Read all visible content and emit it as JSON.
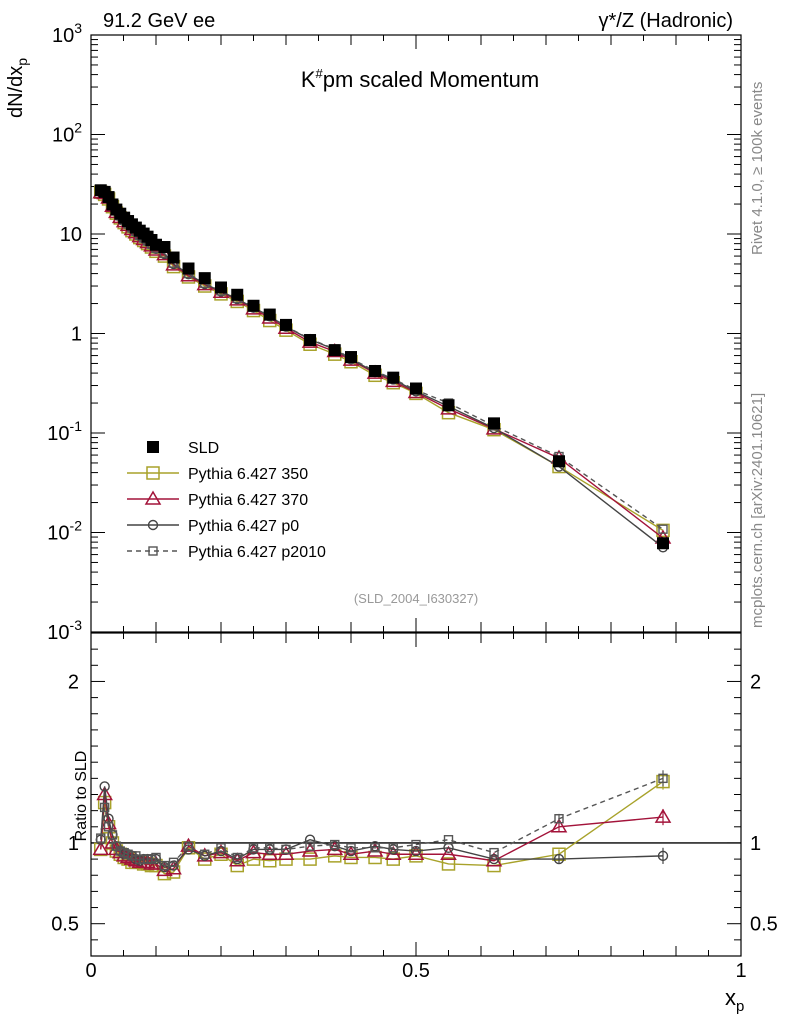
{
  "header": {
    "left": "91.2 GeV ee",
    "right": "γ*/Z (Hadronic)"
  },
  "side_labels": {
    "rivet": "Rivet 4.1.0, ≥ 100k events",
    "site": "mcplots.cern.ch [arXiv:2401.10621]"
  },
  "reference": "(SLD_2004_I630327)",
  "chart_data": [
    {
      "id": "main",
      "type": "scatter",
      "title": "K#pm scaled Momentum",
      "ylabel": "dN/dx_p",
      "xlabel": "",
      "yscale": "log",
      "xlim": [
        0,
        1
      ],
      "ylim": [
        0.001,
        1000
      ],
      "ytick_labels": [
        "10^-3",
        "10^-2",
        "10^-1",
        "1",
        "10",
        "10^2",
        "10^3"
      ],
      "x": [
        0.015,
        0.021,
        0.027,
        0.033,
        0.039,
        0.045,
        0.051,
        0.057,
        0.063,
        0.069,
        0.075,
        0.081,
        0.087,
        0.093,
        0.1,
        0.113,
        0.127,
        0.15,
        0.175,
        0.2,
        0.225,
        0.25,
        0.275,
        0.3,
        0.337,
        0.375,
        0.4,
        0.437,
        0.465,
        0.5,
        0.55,
        0.62,
        0.72,
        0.88
      ],
      "series": [
        {
          "name": "SLD",
          "marker": "filled-square",
          "color": "#000000",
          "values": [
            27.5,
            26.5,
            23.5,
            19.8,
            17.6,
            16.0,
            14.6,
            13.5,
            12.5,
            11.6,
            10.8,
            10.1,
            9.4,
            8.7,
            7.8,
            7.4,
            5.8,
            4.5,
            3.6,
            2.9,
            2.45,
            1.9,
            1.55,
            1.22,
            0.86,
            0.68,
            0.58,
            0.42,
            0.36,
            0.28,
            0.19,
            0.125,
            0.052,
            0.0078
          ]
        },
        {
          "name": "Pythia 6.427 350",
          "marker": "open-square",
          "color": "#a8a22a",
          "values": [
            26.3,
            25.0,
            22.5,
            18.8,
            16.2,
            14.5,
            13.0,
            11.8,
            10.8,
            10.0,
            9.2,
            8.6,
            8.0,
            7.4,
            6.7,
            6.0,
            4.7,
            3.7,
            3.0,
            2.5,
            2.1,
            1.7,
            1.35,
            1.08,
            0.78,
            0.62,
            0.52,
            0.38,
            0.32,
            0.25,
            0.16,
            0.108,
            0.046,
            0.0105
          ]
        },
        {
          "name": "Pythia 6.427 370",
          "marker": "open-triangle",
          "color": "#a3133a",
          "values": [
            26.0,
            25.5,
            23.0,
            19.0,
            16.5,
            14.7,
            13.3,
            12.2,
            11.1,
            10.3,
            9.4,
            8.8,
            8.2,
            7.6,
            6.9,
            6.2,
            4.9,
            3.8,
            3.1,
            2.6,
            2.18,
            1.77,
            1.43,
            1.13,
            0.82,
            0.66,
            0.54,
            0.4,
            0.33,
            0.255,
            0.175,
            0.11,
            0.056,
            0.0088
          ]
        },
        {
          "name": "Pythia 6.427 p0",
          "marker": "open-circle",
          "color": "#444444",
          "values": [
            27.0,
            26.0,
            23.8,
            19.9,
            17.0,
            15.0,
            13.6,
            12.5,
            11.4,
            10.5,
            9.6,
            9.0,
            8.4,
            7.8,
            7.1,
            6.3,
            5.0,
            3.95,
            3.15,
            2.65,
            2.22,
            1.82,
            1.49,
            1.17,
            0.87,
            0.69,
            0.55,
            0.41,
            0.345,
            0.262,
            0.185,
            0.112,
            0.046,
            0.0071
          ]
        },
        {
          "name": "Pythia 6.427 p2010",
          "marker": "open-square-small",
          "color": "#555555",
          "dashed": true,
          "values": [
            28.0,
            27.0,
            24.0,
            20.0,
            17.2,
            15.2,
            13.7,
            12.6,
            11.5,
            10.6,
            9.7,
            9.1,
            8.5,
            7.9,
            7.2,
            6.4,
            5.1,
            4.0,
            3.2,
            2.68,
            2.25,
            1.84,
            1.5,
            1.18,
            0.88,
            0.7,
            0.56,
            0.42,
            0.35,
            0.27,
            0.2,
            0.118,
            0.058,
            0.0108
          ]
        }
      ],
      "legend_position": "lower-left"
    },
    {
      "id": "ratio",
      "type": "scatter",
      "title": "",
      "ylabel": "Ratio to SLD",
      "xlabel": "x_p",
      "xlim": [
        0,
        1
      ],
      "ylim": [
        0.3,
        2.3
      ],
      "ytick_labels": [
        "0.5",
        "1",
        "2"
      ],
      "xtick_labels": [
        "0",
        "0.5",
        "1"
      ],
      "reference_line": 1,
      "series": [
        {
          "name": "Pythia 6.427 350",
          "color": "#a8a22a",
          "values": [
            0.96,
            1.25,
            1.1,
            1.0,
            0.95,
            0.93,
            0.91,
            0.9,
            0.88,
            0.88,
            0.88,
            0.87,
            0.87,
            0.86,
            0.86,
            0.81,
            0.82,
            0.97,
            0.9,
            0.93,
            0.86,
            0.9,
            0.89,
            0.9,
            0.9,
            0.92,
            0.91,
            0.91,
            0.9,
            0.92,
            0.87,
            0.86,
            0.93,
            1.38
          ]
        },
        {
          "name": "Pythia 6.427 370",
          "color": "#a3133a",
          "values": [
            0.96,
            1.3,
            1.12,
            1.0,
            0.96,
            0.94,
            0.92,
            0.91,
            0.9,
            0.89,
            0.88,
            0.88,
            0.88,
            0.87,
            0.87,
            0.83,
            0.84,
            0.98,
            0.92,
            0.94,
            0.89,
            0.94,
            0.93,
            0.93,
            0.95,
            0.96,
            0.93,
            0.95,
            0.93,
            0.93,
            0.93,
            0.89,
            1.1,
            1.16
          ]
        },
        {
          "name": "Pythia 6.427 p0",
          "color": "#444444",
          "values": [
            1.02,
            1.35,
            1.15,
            1.05,
            0.98,
            0.95,
            0.93,
            0.93,
            0.92,
            0.9,
            0.89,
            0.9,
            0.9,
            0.9,
            0.9,
            0.85,
            0.86,
            0.96,
            0.92,
            0.95,
            0.9,
            0.96,
            0.96,
            0.96,
            1.02,
            0.98,
            0.95,
            0.98,
            0.96,
            0.95,
            0.97,
            0.9,
            0.9,
            0.92
          ]
        },
        {
          "name": "Pythia 6.427 p2010",
          "color": "#555555",
          "dashed": true,
          "values": [
            1.03,
            1.22,
            1.1,
            1.05,
            0.98,
            0.95,
            0.94,
            0.93,
            0.92,
            0.92,
            0.9,
            0.9,
            0.9,
            0.9,
            0.91,
            0.86,
            0.88,
            0.98,
            0.93,
            0.97,
            0.91,
            0.97,
            0.97,
            0.96,
            0.98,
            0.99,
            0.97,
            0.97,
            0.97,
            0.99,
            1.02,
            0.94,
            1.15,
            1.4
          ]
        }
      ]
    }
  ]
}
